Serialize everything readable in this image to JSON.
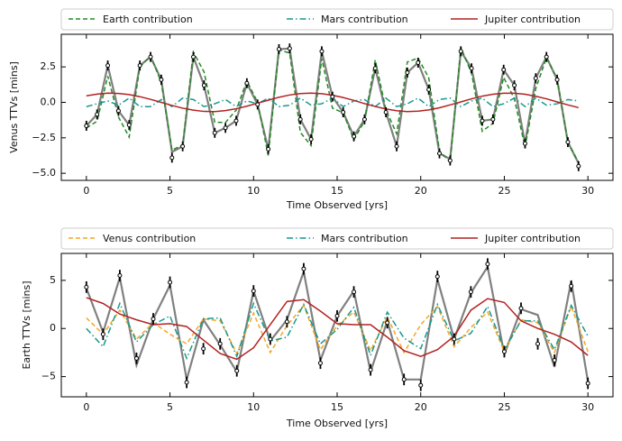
{
  "chart_data": [
    {
      "type": "line",
      "ylabel": "Venus TTVs [mins]",
      "xlabel": "Time Observed [yrs]",
      "legend": "top",
      "x": [
        0,
        0.64,
        1.28,
        1.92,
        2.56,
        3.2,
        3.84,
        4.48,
        5.12,
        5.76,
        6.4,
        7.04,
        7.68,
        8.32,
        8.96,
        9.6,
        10.24,
        10.88,
        11.52,
        12.16,
        12.8,
        13.44,
        14.08,
        14.72,
        15.36,
        16,
        16.64,
        17.28,
        17.92,
        18.56,
        19.2,
        19.84,
        20.48,
        21.12,
        21.76,
        22.4,
        23.04,
        23.68,
        24.32,
        24.96,
        25.6,
        26.24,
        26.88,
        27.52,
        28.16,
        28.8,
        29.44
      ],
      "xlim": [
        -1.5,
        31.5
      ],
      "ylim": [
        -5.5,
        4.8
      ],
      "xticks": [
        0,
        5,
        10,
        15,
        20,
        25,
        30
      ],
      "yticks": [
        {
          "value": -5,
          "label": "−5.0"
        },
        {
          "value": -2.5,
          "label": "−2.5"
        },
        {
          "value": 0,
          "label": "0.0"
        },
        2.5
      ],
      "series": [
        {
          "name": "Earth contribution",
          "color": "#228b22",
          "style": "dashed",
          "values": [
            -1.81,
            -1.33,
            1.85,
            -1.03,
            -2.45,
            2.5,
            3.29,
            1.4,
            -3.38,
            -2.99,
            3.55,
            2.14,
            -1.4,
            -1.42,
            -0.55,
            1.52,
            0.01,
            -3.75,
            3.69,
            3.48,
            -2.12,
            -3.05,
            3.09,
            -0.4,
            -0.74,
            -2.64,
            -1.31,
            2.99,
            -0.53,
            -2.21,
            2.85,
            3.12,
            1.73,
            -3.42,
            -4.22,
            3.87,
            2.05,
            -2.04,
            -1.47,
            1.76,
            0.26,
            -3.17,
            0.97,
            3.15,
            1.67,
            -2.82,
            -4.23
          ]
        },
        {
          "name": "Mars contribution",
          "color": "#17998f",
          "style": "dashdot",
          "values": [
            -0.3,
            -0.1,
            0.1,
            -0.2,
            0.3,
            -0.3,
            -0.3,
            0.2,
            -0.3,
            0.3,
            0.2,
            -0.3,
            -0.1,
            0.2,
            -0.3,
            0.1,
            -0.1,
            0.3,
            -0.3,
            -0.2,
            0.3,
            -0.2,
            -0.1,
            0.3,
            -0.3,
            0.1,
            0.2,
            -0.3,
            0.3,
            -0.3,
            -0.1,
            0.3,
            -0.3,
            0.2,
            0.3,
            -0.3,
            0.1,
            0.3,
            -0.3,
            -0.1,
            0.3,
            -0.3,
            0.3,
            -0.2,
            -0.1,
            0.2,
            0.1
          ]
        },
        {
          "name": "Jupiter contribution",
          "color": "#b22222",
          "style": "solid",
          "values": [
            0.46,
            0.58,
            0.65,
            0.63,
            0.55,
            0.4,
            0.21,
            0,
            -0.22,
            -0.41,
            -0.55,
            -0.64,
            -0.65,
            -0.58,
            -0.45,
            -0.27,
            -0.06,
            0.15,
            0.36,
            0.52,
            0.62,
            0.65,
            0.61,
            0.5,
            0.34,
            0.14,
            -0.09,
            -0.29,
            -0.47,
            -0.59,
            -0.65,
            -0.62,
            -0.53,
            -0.38,
            -0.18,
            0.03,
            0.25,
            0.44,
            0.57,
            0.64,
            0.64,
            0.57,
            0.43,
            0.25,
            0.03,
            -0.18,
            -0.37
          ]
        }
      ],
      "model": {
        "color": "#808080",
        "values": [
          -1.65,
          -0.85,
          2.6,
          -0.6,
          -1.6,
          2.6,
          3.2,
          1.6,
          -3.5,
          -3.1,
          3.2,
          1.2,
          -2.15,
          -1.8,
          -1.3,
          1.35,
          -0.15,
          -3.3,
          3.75,
          3.8,
          -1.2,
          -2.6,
          3.6,
          0.4,
          -0.7,
          -2.4,
          -1.2,
          2.4,
          -0.7,
          -3.1,
          2.1,
          2.8,
          0.9,
          -3.6,
          -4.0,
          3.6,
          2.4,
          -1.3,
          -1.2,
          2.3,
          1.2,
          -2.9,
          1.7,
          3.2,
          1.6,
          -2.8,
          -4.3
        ]
      },
      "observed": {
        "error": 0.35,
        "values": [
          -1.65,
          -0.85,
          2.6,
          -0.6,
          -1.6,
          2.6,
          3.2,
          1.6,
          -3.9,
          -3.1,
          3.2,
          1.2,
          -2.15,
          -1.8,
          -1.3,
          1.35,
          -0.15,
          -3.3,
          3.75,
          3.8,
          -1.2,
          -2.6,
          3.6,
          0.4,
          -0.7,
          -2.4,
          -1.2,
          2.4,
          -0.7,
          -3.1,
          2.1,
          2.8,
          0.9,
          -3.6,
          -4.1,
          3.6,
          2.4,
          -1.3,
          -1.2,
          2.3,
          1.2,
          -2.9,
          1.7,
          3.2,
          1.6,
          -2.8,
          -4.5
        ]
      }
    },
    {
      "type": "line",
      "ylabel": "Earth TTVs [mins]",
      "xlabel": "Time Observed [yrs]",
      "legend": "top",
      "x": [
        0,
        1,
        2,
        3,
        4,
        5,
        6,
        7,
        8,
        9,
        10,
        11,
        12,
        13,
        14,
        15,
        16,
        17,
        18,
        19,
        20,
        21,
        22,
        23,
        24,
        25,
        26,
        27,
        28,
        29,
        30
      ],
      "xlim": [
        -1.5,
        31.5
      ],
      "ylim": [
        -7.1,
        7.8
      ],
      "xticks": [
        0,
        5,
        10,
        15,
        20,
        25,
        30
      ],
      "yticks": [
        {
          "value": -5,
          "label": "−5"
        },
        0,
        5
      ],
      "series": [
        {
          "name": "Venus contribution",
          "color": "#f5a623",
          "style": "dashed",
          "values": [
            1.1,
            -0.6,
            1.9,
            -1.1,
            0.6,
            -0.6,
            -1.6,
            1.0,
            0.8,
            -2.6,
            1.6,
            -2.5,
            0.3,
            2.4,
            -2.2,
            0.3,
            1.7,
            -2.3,
            1.2,
            -2.5,
            0.4,
            2.3,
            -1.9,
            0.1,
            1.7,
            -2.4,
            0.9,
            0.6,
            -2.5,
            2.3,
            -2.4
          ]
        },
        {
          "name": "Mars contribution",
          "color": "#17998f",
          "style": "dashdot",
          "values": [
            0,
            -1.9,
            2.6,
            -1.4,
            0.4,
            1.3,
            -3.1,
            1.0,
            1.1,
            -2.9,
            2.6,
            -1.3,
            -0.9,
            2.5,
            -1.6,
            -0.1,
            2.2,
            -2.8,
            1.7,
            -1.0,
            -2.1,
            2.5,
            -1.3,
            -0.5,
            2.3,
            -2.2,
            0.8,
            0.8,
            -2.2,
            2.4,
            -0.8
          ]
        },
        {
          "name": "Jupiter contribution",
          "color": "#b22222",
          "style": "solid",
          "values": [
            3.2,
            2.6,
            1.5,
            0.9,
            0.4,
            0.5,
            0.2,
            -1.2,
            -2.6,
            -3.2,
            -2.0,
            0.4,
            2.8,
            3.0,
            1.8,
            0.5,
            0.4,
            0.4,
            -0.9,
            -2.3,
            -2.9,
            -2.2,
            -0.8,
            1.9,
            3.1,
            2.7,
            0.8,
            0,
            -0.6,
            -1.4,
            -2.8
          ]
        }
      ],
      "model": {
        "color": "#808080",
        "values": [
          4.2,
          -0.4,
          5.3,
          -3.8,
          1.0,
          4.5,
          -5.3,
          0.9,
          -1.7,
          -4.5,
          3.9,
          -1.3,
          0.9,
          5.9,
          -3.3,
          1.3,
          3.9,
          -4.5,
          0.8,
          -5.3,
          -5.3,
          5.1,
          -1.1,
          3.7,
          6.4,
          -2.7,
          2.0,
          1.4,
          -4.0,
          4.9,
          -5.5
        ]
      },
      "observed": {
        "error": 0.6,
        "values": [
          4.3,
          -0.6,
          5.5,
          -3.1,
          1.0,
          4.8,
          -5.6,
          -2.1,
          -1.6,
          -4.4,
          3.9,
          -1.1,
          0.7,
          6.2,
          -3.6,
          1.3,
          3.8,
          -4.3,
          0.6,
          -5.3,
          -5.9,
          5.4,
          -1.1,
          3.8,
          6.7,
          -2.4,
          2.1,
          -1.6,
          -3.3,
          4.4,
          -5.7
        ]
      }
    }
  ]
}
